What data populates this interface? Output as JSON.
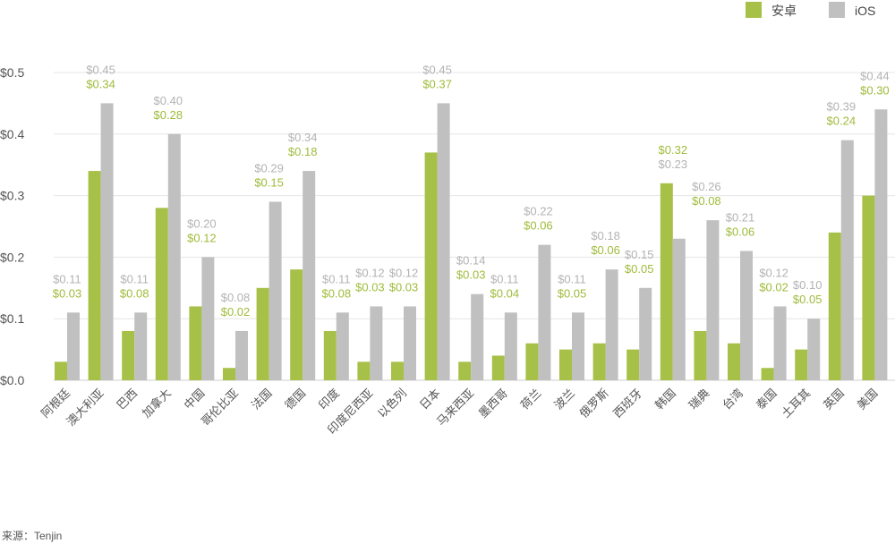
{
  "chart_data": {
    "type": "bar",
    "title": "",
    "xlabel": "",
    "ylabel": "",
    "ylim": [
      0,
      0.5
    ],
    "yticks": [
      "$0.0",
      "$0.1",
      "$0.2",
      "$0.3",
      "$0.4",
      "$0.5"
    ],
    "grid": true,
    "legend_placement": "top-right",
    "categories": [
      "阿根廷",
      "澳大利亚",
      "巴西",
      "加拿大",
      "中国",
      "哥伦比亚",
      "法国",
      "德国",
      "印度",
      "印度尼西亚",
      "以色列",
      "日本",
      "马来西亚",
      "墨西哥",
      "荷兰",
      "波兰",
      "俄罗斯",
      "西班牙",
      "韩国",
      "瑞典",
      "台湾",
      "泰国",
      "土耳其",
      "英国",
      "美国"
    ],
    "series": [
      {
        "name": "安卓",
        "color": "#a6c048",
        "label_color": "#9fbb3a",
        "values": [
          0.03,
          0.34,
          0.08,
          0.28,
          0.12,
          0.02,
          0.15,
          0.18,
          0.08,
          0.03,
          0.03,
          0.37,
          0.03,
          0.04,
          0.06,
          0.05,
          0.06,
          0.05,
          0.32,
          0.08,
          0.06,
          0.02,
          0.05,
          0.24,
          0.3
        ]
      },
      {
        "name": "iOS",
        "color": "#c0c0c0",
        "label_color": "#b3b3b3",
        "values": [
          0.11,
          0.45,
          0.11,
          0.4,
          0.2,
          0.08,
          0.29,
          0.34,
          0.11,
          0.12,
          0.12,
          0.45,
          0.14,
          0.11,
          0.22,
          0.11,
          0.18,
          0.15,
          0.23,
          0.26,
          0.21,
          0.12,
          0.1,
          0.39,
          0.44
        ]
      }
    ]
  },
  "source": "来源：Tenjin"
}
